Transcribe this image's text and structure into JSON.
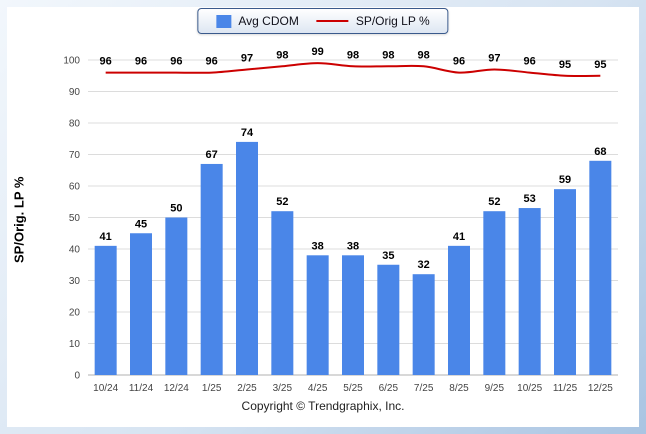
{
  "page": {
    "copyright": "Copyright © Trendgraphix, Inc."
  },
  "legend": {
    "items": [
      {
        "label": "Avg CDOM",
        "type": "bar",
        "color": "#4a86e8"
      },
      {
        "label": "SP/Orig LP %",
        "type": "line",
        "color": "#cc0000"
      }
    ]
  },
  "chart_data": {
    "type": "bar+line",
    "categories": [
      "10/24",
      "11/24",
      "12/24",
      "1/25",
      "2/25",
      "3/25",
      "4/25",
      "5/25",
      "6/25",
      "7/25",
      "8/25",
      "9/25",
      "10/25",
      "11/25",
      "12/25"
    ],
    "series": [
      {
        "name": "Avg CDOM",
        "type": "bar",
        "color": "#4a86e8",
        "values": [
          41,
          45,
          50,
          67,
          74,
          52,
          38,
          38,
          35,
          32,
          41,
          52,
          53,
          59,
          68
        ]
      },
      {
        "name": "SP/Orig LP %",
        "type": "line",
        "color": "#cc0000",
        "values": [
          96,
          96,
          96,
          96,
          97,
          98,
          99,
          98,
          98,
          98,
          96,
          97,
          96,
          95,
          95
        ]
      }
    ],
    "ylabel": "SP/Orig. LP %",
    "ylim": [
      0,
      100
    ],
    "ytick_interval": 10,
    "grid": true,
    "legend_position": "top-center"
  }
}
